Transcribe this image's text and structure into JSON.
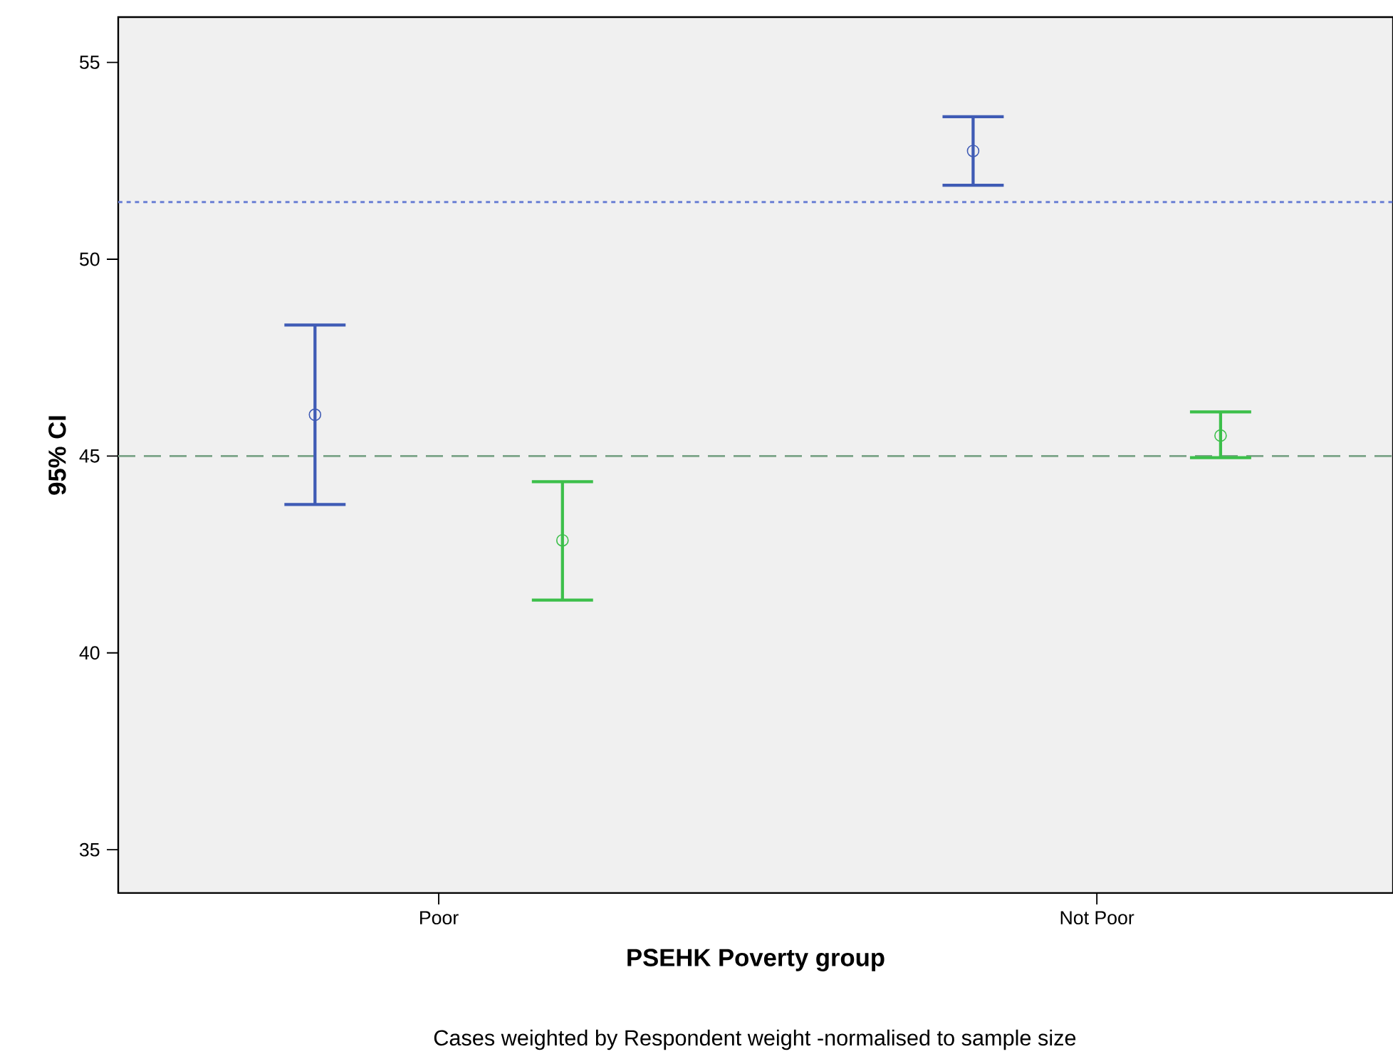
{
  "chart_data": {
    "type": "scatter",
    "xlabel": "PSEHK Poverty group",
    "ylabel": "95% CI",
    "categories": [
      "Poor",
      "Not Poor"
    ],
    "series": [
      {
        "color": "#3f5bb5",
        "values": [
          46.05,
          52.75
        ],
        "errors": [
          [
            43.77,
            48.33
          ],
          [
            51.88,
            53.62
          ]
        ]
      },
      {
        "color": "#3cbf4a",
        "values": [
          42.86,
          45.52
        ],
        "errors": [
          [
            41.34,
            44.35
          ],
          [
            44.96,
            46.12
          ]
        ]
      }
    ],
    "ylim": [
      33.9,
      56.15
    ],
    "yticks": [
      35,
      40,
      45,
      50,
      55
    ],
    "ref_lines": [
      {
        "axis": "y",
        "value": 51.45,
        "color": "#6a7fd4",
        "line_style": "dotted"
      },
      {
        "axis": "y",
        "value": 45,
        "color": "#7aa387",
        "line_style": "dashed"
      }
    ],
    "marker": "circle",
    "annotations": [
      "Cases weighted by Respondent weight -normalised to sample size"
    ]
  }
}
